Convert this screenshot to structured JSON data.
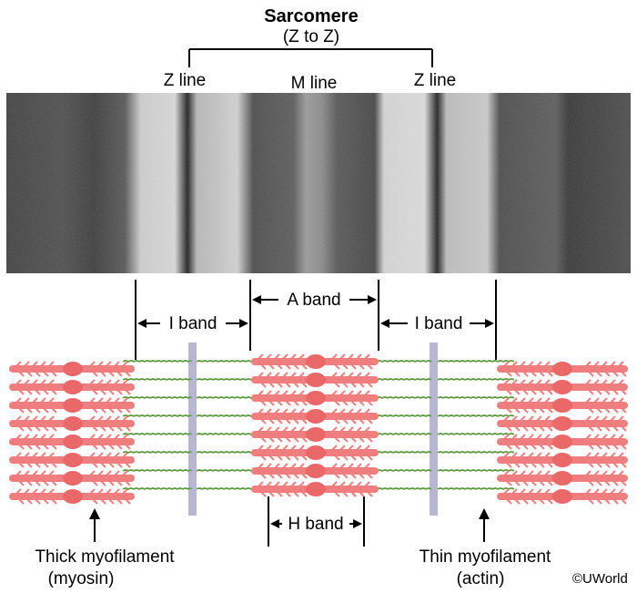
{
  "title": "Sarcomere",
  "subtitle": "(Z to Z)",
  "top_labels": {
    "z_line_left": "Z line",
    "m_line": "M line",
    "z_line_right": "Z line"
  },
  "bands": {
    "i_band_left": "I band",
    "a_band": "A band",
    "i_band_right": "I band",
    "h_band": "H band"
  },
  "bottom_labels": {
    "thick_line1": "Thick myofilament",
    "thick_line2": "(myosin)",
    "thin_line1": "Thin myofilament",
    "thin_line2": "(actin)"
  },
  "copyright": "©UWorld",
  "colors": {
    "myosin": "#f07e7e",
    "myosin_head": "#ea6868",
    "actin": "#5a9a3a",
    "z_disc": "#b7b7d4",
    "line": "#000000"
  }
}
